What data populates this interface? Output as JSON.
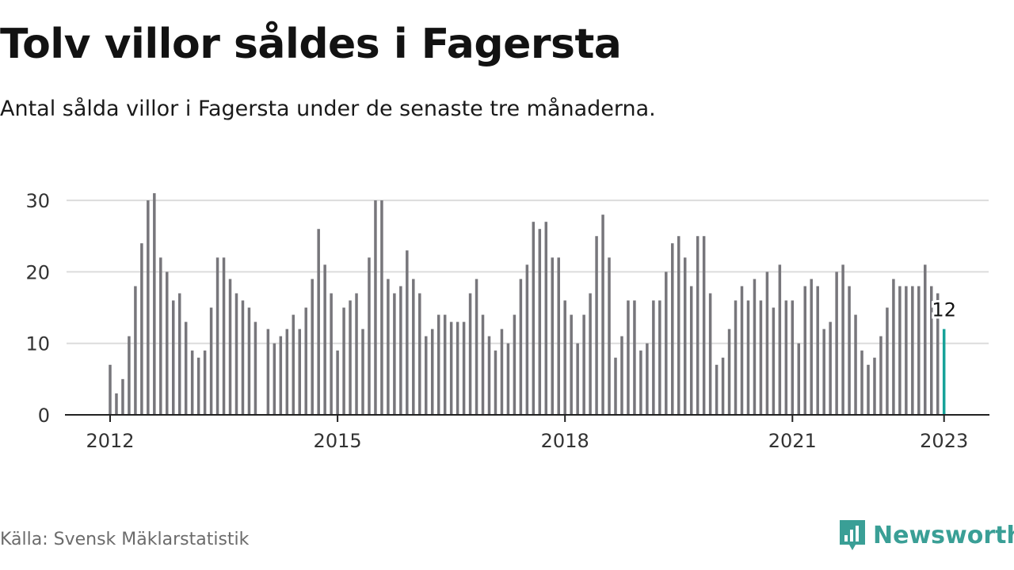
{
  "title": "Tolv villor såldes i Fagersta",
  "subtitle": "Antal sålda villor i Fagersta under de senaste tre månaderna.",
  "source": "Källa: Svensk Mäklarstatistik",
  "brand": {
    "name": "Newsworthy",
    "icon": "newsworthy-logo-icon",
    "color": "#3a9f96"
  },
  "chart_data": {
    "type": "bar",
    "x_start": "2012-01",
    "frequency": "monthly",
    "values": [
      7,
      3,
      5,
      11,
      18,
      24,
      30,
      31,
      22,
      20,
      16,
      17,
      13,
      9,
      8,
      9,
      15,
      22,
      22,
      19,
      17,
      16,
      15,
      13,
      null,
      12,
      10,
      11,
      12,
      14,
      12,
      15,
      19,
      26,
      21,
      17,
      9,
      15,
      16,
      17,
      12,
      22,
      30,
      30,
      19,
      17,
      18,
      23,
      19,
      17,
      11,
      12,
      14,
      14,
      13,
      13,
      13,
      17,
      19,
      14,
      11,
      9,
      12,
      10,
      14,
      19,
      21,
      27,
      26,
      27,
      22,
      22,
      16,
      14,
      10,
      14,
      17,
      25,
      28,
      22,
      8,
      11,
      16,
      16,
      9,
      10,
      16,
      16,
      20,
      24,
      25,
      22,
      18,
      25,
      25,
      17,
      7,
      8,
      12,
      16,
      18,
      16,
      19,
      16,
      20,
      15,
      21,
      16,
      16,
      10,
      18,
      19,
      18,
      12,
      13,
      20,
      21,
      18,
      14,
      9,
      7,
      8,
      11,
      15,
      19,
      18,
      18,
      18,
      18,
      21,
      18,
      17,
      12
    ],
    "x_ticks": [
      "2012",
      "2015",
      "2018",
      "2021",
      "2023"
    ],
    "y_ticks": [
      "0",
      "10",
      "20",
      "30"
    ],
    "ylim": [
      0,
      32
    ],
    "highlight_label": "12",
    "bar_color": "#77767b",
    "highlight_color": "#17a299",
    "grid": true
  }
}
